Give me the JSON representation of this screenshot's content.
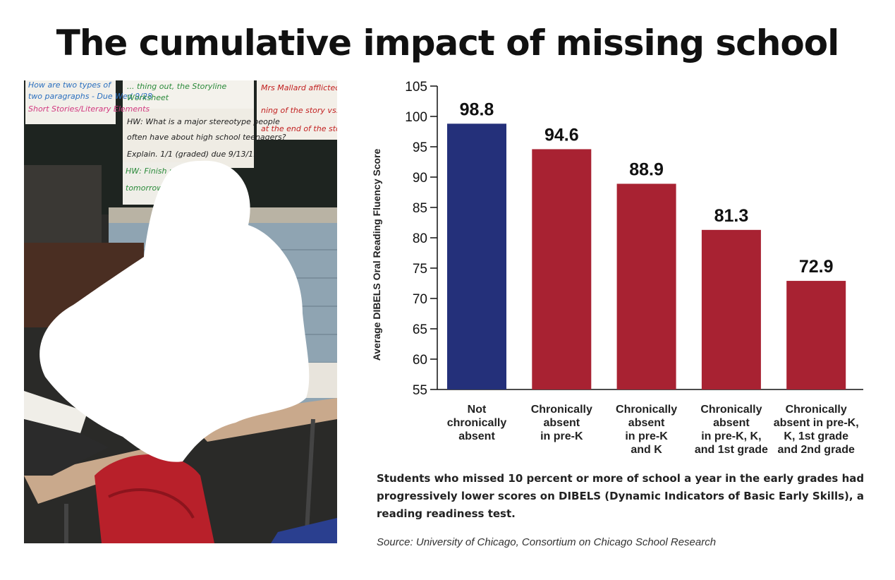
{
  "title": "The cumulative impact of missing school",
  "photo": {
    "subject": "student-at-desk-icon",
    "board_lines": [
      "How are two types of",
      "two paragraphs - Due Wed 9/28",
      "Short Stories/Literary Elements",
      "... thing out, the Storyline",
      "Worksheet",
      "Mrs Mallard afflicted w",
      "ning of the story vs. b",
      "at the end of the sto",
      "HW: What is a major stereotype people",
      "often have about high school teenagers?",
      "Explain. 1/1 (graded) due 9/13/11",
      "HW: Finish ur",
      "tomorrow"
    ]
  },
  "chart_data": {
    "type": "bar",
    "title": "",
    "ylabel": "Average DIBELS Oral Reading Fluency Score",
    "xlabel": "",
    "ylim": [
      55,
      105
    ],
    "yticks": [
      55,
      60,
      65,
      70,
      75,
      80,
      85,
      90,
      95,
      100,
      105
    ],
    "categories": [
      [
        "Not",
        "chronically",
        "absent"
      ],
      [
        "Chronically",
        "absent",
        "in pre-K"
      ],
      [
        "Chronically",
        "absent",
        "in pre-K",
        "and K"
      ],
      [
        "Chronically",
        "absent",
        "in pre-K, K,",
        "and 1st grade"
      ],
      [
        "Chronically",
        "absent in pre-K,",
        "K, 1st grade",
        "and 2nd grade"
      ]
    ],
    "values": [
      98.8,
      94.6,
      88.9,
      81.3,
      72.9
    ],
    "value_labels": [
      "98.8",
      "94.6",
      "88.9",
      "81.3",
      "72.9"
    ],
    "bar_colors": [
      "#24307a",
      "#a82232",
      "#a82232",
      "#a82232",
      "#a82232"
    ],
    "grid": false,
    "legend": "none"
  },
  "note": "Students who missed 10 percent or more of school a year in the early grades had progressively lower scores on DIBELS (Dynamic Indicators of Basic Early Skills), a reading readiness test.",
  "source": "Source: University of Chicago, Consortium on Chicago School Research"
}
